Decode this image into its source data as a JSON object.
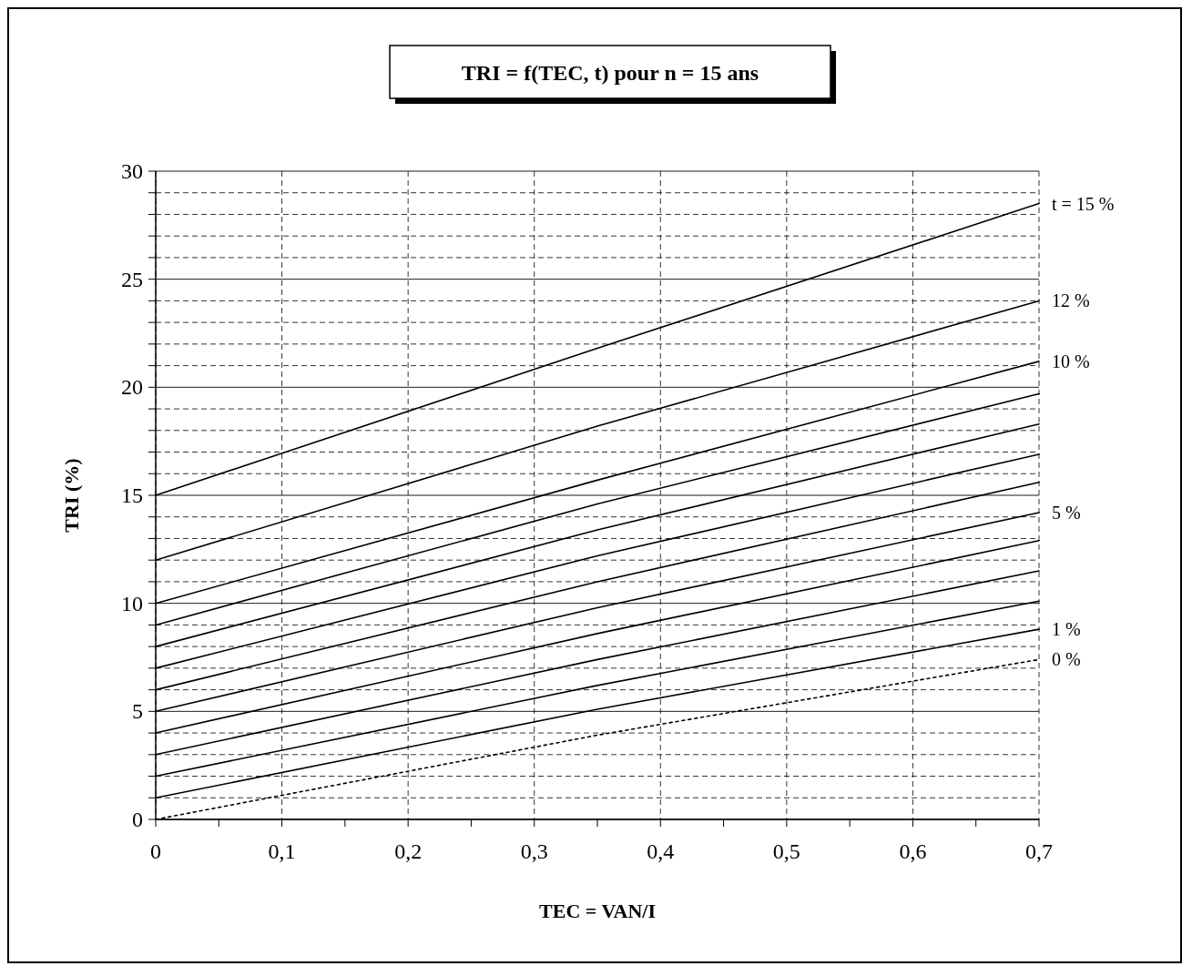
{
  "chart_data": {
    "type": "line",
    "title": "TRI = f(TEC, t) pour n = 15 ans",
    "xlabel": "TEC = VAN/I",
    "ylabel": "TRI (%)",
    "x": [
      0,
      0.35,
      0.7
    ],
    "series": [
      {
        "name": "t = 15 %",
        "color": "#000000",
        "values": [
          15,
          21.8,
          28.5
        ]
      },
      {
        "name": "12 %",
        "color": "#000000",
        "values": [
          12,
          18.2,
          24
        ]
      },
      {
        "name": "10 %",
        "color": "#000000",
        "values": [
          10,
          15.7,
          21.2
        ]
      },
      {
        "color": "#000000",
        "values": [
          9,
          14.6,
          19.7
        ]
      },
      {
        "color": "#000000",
        "values": [
          8,
          13.4,
          18.3
        ]
      },
      {
        "color": "#000000",
        "values": [
          7,
          12.2,
          16.9
        ]
      },
      {
        "color": "#000000",
        "values": [
          6,
          11,
          15.6
        ]
      },
      {
        "name": "5 %",
        "color": "#000000",
        "values": [
          5,
          9.8,
          14.2
        ]
      },
      {
        "color": "#000000",
        "values": [
          4,
          8.6,
          12.9
        ]
      },
      {
        "color": "#000000",
        "values": [
          3,
          7.4,
          11.5
        ]
      },
      {
        "color": "#000000",
        "values": [
          2,
          6.2,
          10.1
        ]
      },
      {
        "name": "1 %",
        "color": "#000000",
        "values": [
          1,
          5.1,
          8.8
        ]
      },
      {
        "name": "0 %",
        "color": "#000000",
        "line_style": "dotted",
        "values": [
          0,
          3.9,
          7.4
        ]
      }
    ],
    "xlim": [
      0,
      0.7
    ],
    "xticks": [
      {
        "value": 0,
        "label": "0"
      },
      {
        "value": 0.05,
        "label": null
      },
      {
        "value": 0.1,
        "label": "0,1"
      },
      {
        "value": 0.15,
        "label": null
      },
      {
        "value": 0.2,
        "label": "0,2"
      },
      {
        "value": 0.25,
        "label": null
      },
      {
        "value": 0.3,
        "label": "0,3"
      },
      {
        "value": 0.35,
        "label": null
      },
      {
        "value": 0.4,
        "label": "0,4"
      },
      {
        "value": 0.45,
        "label": null
      },
      {
        "value": 0.5,
        "label": "0,5"
      },
      {
        "value": 0.55,
        "label": null
      },
      {
        "value": 0.6,
        "label": "0,6"
      },
      {
        "value": 0.65,
        "label": null
      },
      {
        "value": 0.7,
        "label": "0,7"
      }
    ],
    "ylim": [
      0,
      30
    ],
    "yticks": [
      0,
      {
        "value": 1,
        "label": null
      },
      {
        "value": 2,
        "label": null
      },
      {
        "value": 3,
        "label": null
      },
      {
        "value": 4,
        "label": null
      },
      5,
      {
        "value": 6,
        "label": null
      },
      {
        "value": 7,
        "label": null
      },
      {
        "value": 8,
        "label": null
      },
      {
        "value": 9,
        "label": null
      },
      10,
      {
        "value": 11,
        "label": null
      },
      {
        "value": 12,
        "label": null
      },
      {
        "value": 13,
        "label": null
      },
      {
        "value": 14,
        "label": null
      },
      15,
      {
        "value": 16,
        "label": null
      },
      {
        "value": 17,
        "label": null
      },
      {
        "value": 18,
        "label": null
      },
      {
        "value": 19,
        "label": null
      },
      20,
      {
        "value": 21,
        "label": null
      },
      {
        "value": 22,
        "label": null
      },
      {
        "value": 23,
        "label": null
      },
      {
        "value": 24,
        "label": null
      },
      25,
      {
        "value": 26,
        "label": null
      },
      {
        "value": 27,
        "label": null
      },
      {
        "value": 28,
        "label": null
      },
      {
        "value": 29,
        "label": null
      },
      30
    ],
    "grid": true,
    "line_style": "solid"
  }
}
